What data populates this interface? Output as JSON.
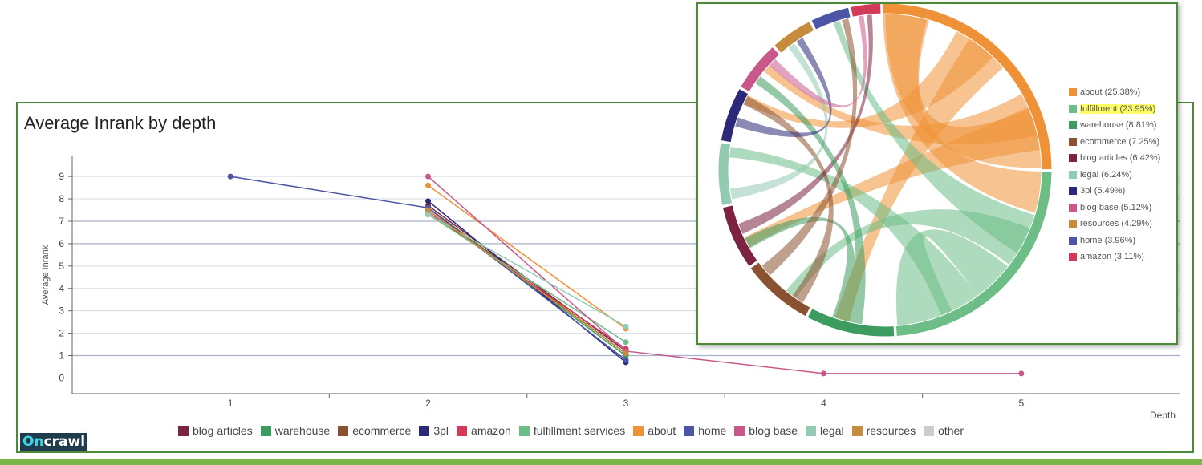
{
  "chart_data": [
    {
      "type": "line",
      "title": "Average Inrank by depth",
      "xlabel": "Depth",
      "ylabel": "Average Inrank",
      "x": [
        1,
        2,
        3,
        4,
        5
      ],
      "xlim": [
        0.2,
        5.8
      ],
      "ylim": [
        -0.7,
        9.9
      ],
      "yticks": [
        0,
        1,
        2,
        3,
        4,
        5,
        6,
        7,
        8,
        9
      ],
      "grid": true,
      "legend_position": "bottom",
      "series": [
        {
          "name": "blog articles",
          "color": "#7b2340",
          "values": [
            null,
            7.7,
            1.2,
            null,
            null
          ]
        },
        {
          "name": "warehouse",
          "color": "#3c9b5f",
          "values": [
            null,
            7.5,
            1.0,
            null,
            null
          ]
        },
        {
          "name": "ecommerce",
          "color": "#8a5230",
          "values": [
            null,
            7.6,
            1.1,
            null,
            null
          ]
        },
        {
          "name": "3pl",
          "color": "#2c2a78",
          "values": [
            null,
            7.9,
            0.7,
            null,
            null
          ]
        },
        {
          "name": "amazon",
          "color": "#d23a5a",
          "values": [
            null,
            7.4,
            1.3,
            null,
            null
          ]
        },
        {
          "name": "fulfillment services",
          "color": "#6cbd86",
          "values": [
            null,
            7.3,
            1.6,
            null,
            null
          ]
        },
        {
          "name": "about",
          "color": "#ef9136",
          "values": [
            null,
            8.6,
            2.2,
            null,
            null
          ]
        },
        {
          "name": "home",
          "color": "#4d56a5",
          "values": [
            9.0,
            7.6,
            0.8,
            null,
            null
          ]
        },
        {
          "name": "blog base",
          "color": "#c8588a",
          "values": [
            null,
            9.0,
            1.2,
            0.2,
            0.2
          ]
        },
        {
          "name": "legal",
          "color": "#92cbb2",
          "values": [
            null,
            7.3,
            2.3,
            null,
            null
          ]
        },
        {
          "name": "resources",
          "color": "#c68c3e",
          "values": [
            null,
            7.5,
            1.1,
            null,
            null
          ]
        },
        {
          "name": "other",
          "color": "#cccccc",
          "values": [
            null,
            null,
            null,
            null,
            null
          ]
        }
      ]
    },
    {
      "type": "chord",
      "legend_position": "right",
      "segments": [
        {
          "label": "about (25.38%)",
          "name": "about",
          "value": 25.38,
          "color": "#ef9136",
          "highlight": false
        },
        {
          "label": "fulfillment (23.95%)",
          "name": "fulfillment",
          "value": 23.95,
          "color": "#6cbd86",
          "highlight": true
        },
        {
          "label": "warehouse (8.81%)",
          "name": "warehouse",
          "value": 8.81,
          "color": "#3c9b5f",
          "highlight": false
        },
        {
          "label": "ecommerce (7.25%)",
          "name": "ecommerce",
          "value": 7.25,
          "color": "#8a5230",
          "highlight": false
        },
        {
          "label": "blog articles (6.42%)",
          "name": "blog articles",
          "value": 6.42,
          "color": "#7b2340",
          "highlight": false
        },
        {
          "label": "legal (6.24%)",
          "name": "legal",
          "value": 6.24,
          "color": "#92cbb2",
          "highlight": false
        },
        {
          "label": "3pl (5.49%)",
          "name": "3pl",
          "value": 5.49,
          "color": "#2c2a78",
          "highlight": false
        },
        {
          "label": "blog base (5.12%)",
          "name": "blog base",
          "value": 5.12,
          "color": "#c8588a",
          "highlight": false
        },
        {
          "label": "resources (4.29%)",
          "name": "resources",
          "value": 4.29,
          "color": "#c68c3e",
          "highlight": false
        },
        {
          "label": "home (3.96%)",
          "name": "home",
          "value": 3.96,
          "color": "#4d56a5",
          "highlight": false
        },
        {
          "label": "amazon (3.11%)",
          "name": "amazon",
          "value": 3.11,
          "color": "#d23a5a",
          "highlight": false
        }
      ]
    }
  ],
  "branding": {
    "logo_prefix": "On",
    "logo_suffix": "crawl"
  }
}
